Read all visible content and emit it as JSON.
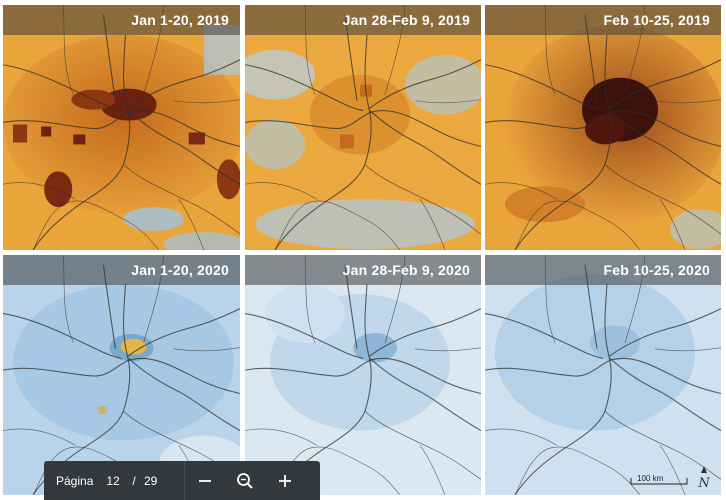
{
  "panels": [
    {
      "caption": "Jan 1-20, 2019"
    },
    {
      "caption": "Jan 28-Feb 9, 2019"
    },
    {
      "caption": "Feb 10-25, 2019"
    },
    {
      "caption": "Jan 1-20, 2020"
    },
    {
      "caption": "Jan 28-Feb 9, 2020"
    },
    {
      "caption": "Feb 10-25, 2020"
    }
  ],
  "map": {
    "scale_label": "100 km",
    "north_icon": "north-arrow-icon"
  },
  "toolbar": {
    "page_label": "Página",
    "current_page": "12",
    "separator": "/",
    "total_pages": "29",
    "zoom_out_icon": "minus-icon",
    "zoom_reset_icon": "magnifier-icon",
    "zoom_in_icon": "plus-icon"
  },
  "colors": {
    "high_no2": "#e9a23b",
    "very_high_no2": "#5a1a0c",
    "low_no2": "#a9cbe6",
    "toolbar_bg": "#35383a"
  }
}
